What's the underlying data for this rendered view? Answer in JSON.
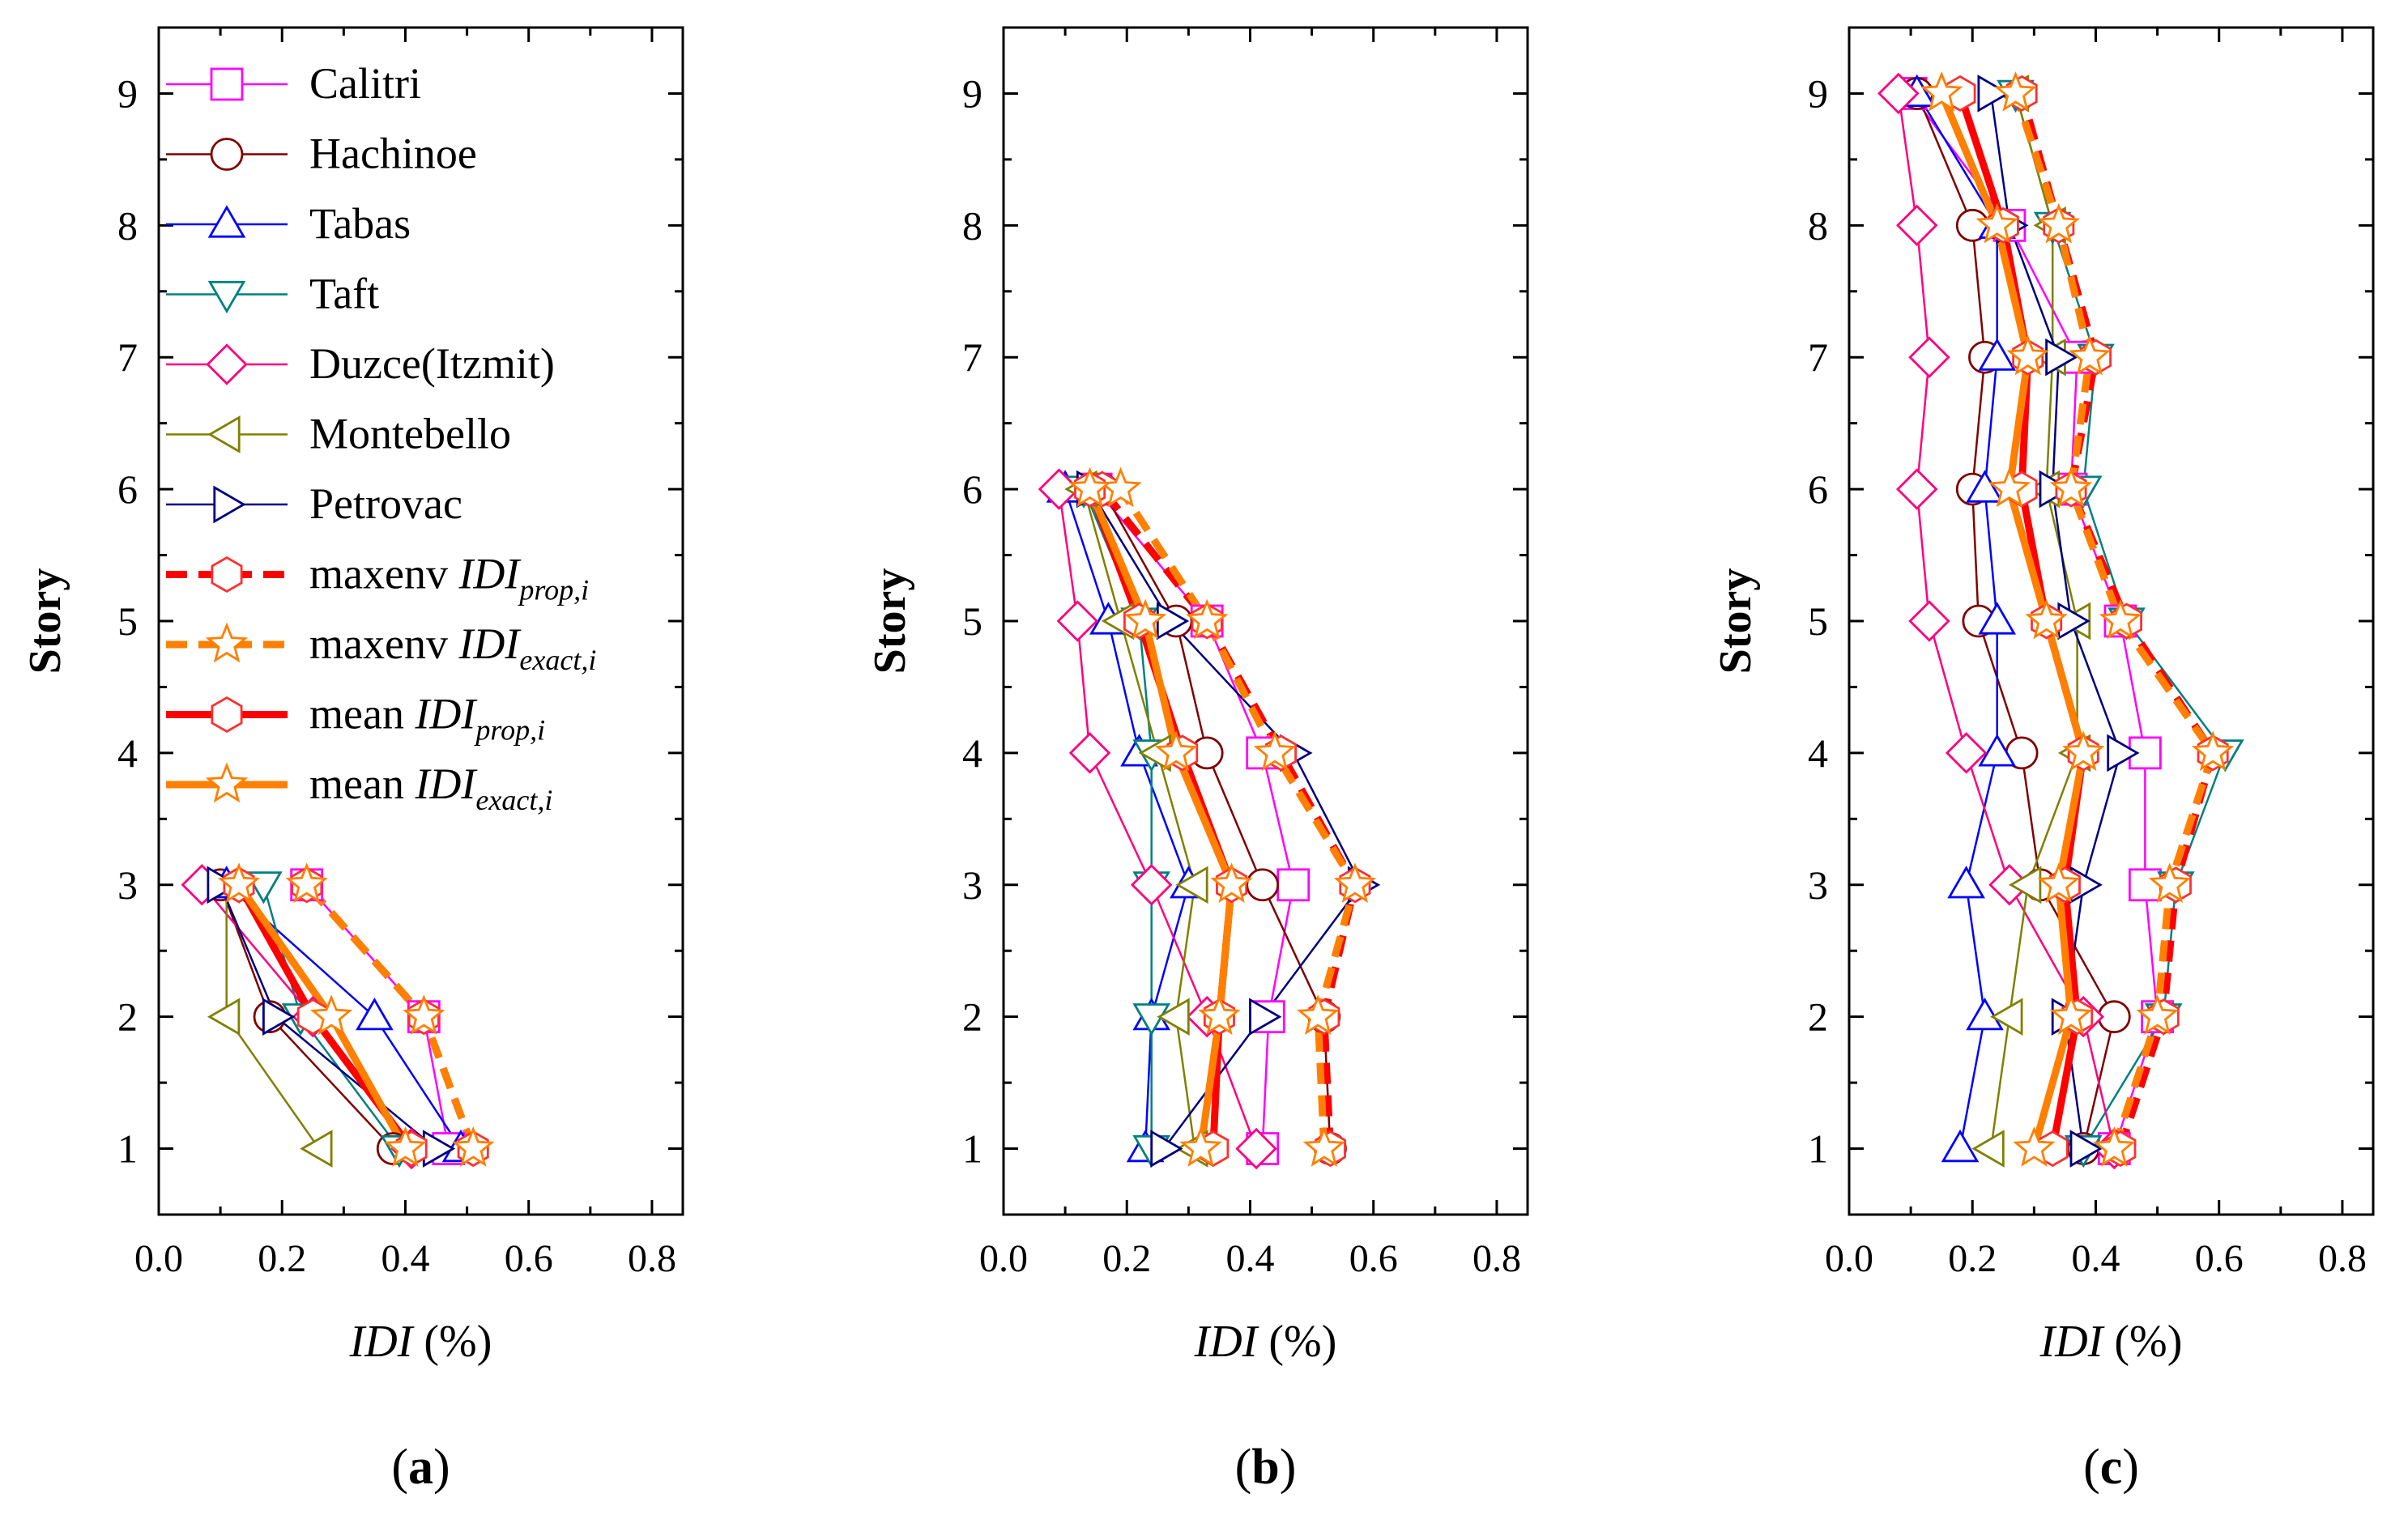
{
  "styles": {
    "Calitri": {
      "color": "#ff00ff",
      "marker": "square",
      "dash": "",
      "width": 2.5
    },
    "Hachinoe": {
      "color": "#800000",
      "marker": "circle",
      "dash": "",
      "width": 2.5
    },
    "Tabas": {
      "color": "#0000ff",
      "marker": "triangle-up",
      "dash": "",
      "width": 2.5
    },
    "Taft": {
      "color": "#008080",
      "marker": "triangle-down",
      "dash": "",
      "width": 2.5
    },
    "Duzce(Itzmit)": {
      "color": "#ff0080",
      "marker": "diamond",
      "dash": "",
      "width": 2.5
    },
    "Montebello": {
      "color": "#808000",
      "marker": "triangle-left",
      "dash": "",
      "width": 2.5
    },
    "Petrovac": {
      "color": "#000080",
      "marker": "triangle-right",
      "dash": "",
      "width": 2.5
    },
    "maxenv_prop": {
      "color": "#ff0000",
      "marker": "hexagon",
      "dash": "26,14",
      "width": 9,
      "markerStroke": "#ff3030"
    },
    "maxenv_exact": {
      "color": "#ff8000",
      "marker": "star",
      "dash": "26,14",
      "width": 9
    },
    "mean_prop": {
      "color": "#ff0000",
      "marker": "hexagon",
      "dash": "",
      "width": 9,
      "markerStroke": "#ff3030"
    },
    "mean_exact": {
      "color": "#ff8000",
      "marker": "star",
      "dash": "",
      "width": 9
    }
  },
  "legend": {
    "items": [
      {
        "key": "Calitri",
        "label": "Calitri"
      },
      {
        "key": "Hachinoe",
        "label": "Hachinoe"
      },
      {
        "key": "Tabas",
        "label": "Tabas"
      },
      {
        "key": "Taft",
        "label": "Taft"
      },
      {
        "key": "Duzce(Itzmit)",
        "label": "Duzce(Itzmit)"
      },
      {
        "key": "Montebello",
        "label": "Montebello"
      },
      {
        "key": "Petrovac",
        "label": "Petrovac"
      },
      {
        "key": "maxenv_prop",
        "prefix": "maxenv ",
        "italic": "IDI",
        "sub": "prop,i"
      },
      {
        "key": "maxenv_exact",
        "prefix": "maxenv ",
        "italic": "IDI",
        "sub": "exact,i"
      },
      {
        "key": "mean_prop",
        "prefix": "mean ",
        "italic": "IDI",
        "sub": "prop,i"
      },
      {
        "key": "mean_exact",
        "prefix": "mean ",
        "italic": "IDI",
        "sub": "exact,i"
      }
    ]
  },
  "chart_data": [
    {
      "type": "line",
      "panel_label": "(a)",
      "panel_letter": "a",
      "xlabel_italic": "IDI",
      "xlabel_rest": " (%)",
      "ylabel": "Story",
      "xlim": [
        0.0,
        0.85
      ],
      "ylim": [
        0.5,
        9.5
      ],
      "xticks": [
        "0.0",
        "0.2",
        "0.4",
        "0.6",
        "0.8"
      ],
      "yticks": [
        "1",
        "2",
        "3",
        "4",
        "5",
        "6",
        "7",
        "8",
        "9"
      ],
      "series": [
        {
          "name": "Calitri",
          "x": [
            0.47,
            0.43,
            0.24
          ],
          "y": [
            1,
            2,
            3
          ]
        },
        {
          "name": "Hachinoe",
          "x": [
            0.38,
            0.18,
            0.1
          ],
          "y": [
            1,
            2,
            3
          ]
        },
        {
          "name": "Tabas",
          "x": [
            0.49,
            0.35,
            0.11
          ],
          "y": [
            1,
            2,
            3
          ]
        },
        {
          "name": "Taft",
          "x": [
            0.39,
            0.23,
            0.17
          ],
          "y": [
            1,
            2,
            3
          ]
        },
        {
          "name": "Duzce(Itzmit)",
          "x": [
            0.41,
            0.25,
            0.07
          ],
          "y": [
            1,
            2,
            3
          ]
        },
        {
          "name": "Montebello",
          "x": [
            0.26,
            0.11,
            0.11
          ],
          "y": [
            1,
            2,
            3
          ]
        },
        {
          "name": "Petrovac",
          "x": [
            0.45,
            0.19,
            0.1
          ],
          "y": [
            1,
            2,
            3
          ]
        },
        {
          "name": "maxenv_prop",
          "x": [
            0.51,
            0.43,
            0.24
          ],
          "y": [
            1,
            2,
            3
          ]
        },
        {
          "name": "maxenv_exact",
          "x": [
            0.51,
            0.43,
            0.24
          ],
          "y": [
            1,
            2,
            3
          ]
        },
        {
          "name": "mean_prop",
          "x": [
            0.41,
            0.25,
            0.13
          ],
          "y": [
            1,
            2,
            3
          ]
        },
        {
          "name": "mean_exact",
          "x": [
            0.4,
            0.28,
            0.13
          ],
          "y": [
            1,
            2,
            3
          ]
        }
      ]
    },
    {
      "type": "line",
      "panel_label": "(b)",
      "panel_letter": "b",
      "xlabel_italic": "IDI",
      "xlabel_rest": " (%)",
      "ylabel": "Story",
      "xlim": [
        0.0,
        0.85
      ],
      "ylim": [
        0.5,
        9.5
      ],
      "xticks": [
        "0.0",
        "0.2",
        "0.4",
        "0.6",
        "0.8"
      ],
      "yticks": [
        "1",
        "2",
        "3",
        "4",
        "5",
        "6",
        "7",
        "8",
        "9"
      ],
      "series": [
        {
          "name": "Calitri",
          "x": [
            0.42,
            0.43,
            0.47,
            0.42,
            0.33,
            0.15
          ],
          "y": [
            1,
            2,
            3,
            4,
            5,
            6
          ]
        },
        {
          "name": "Hachinoe",
          "x": [
            0.53,
            0.52,
            0.42,
            0.33,
            0.28,
            0.16
          ],
          "y": [
            1,
            2,
            3,
            4,
            5,
            6
          ]
        },
        {
          "name": "Tabas",
          "x": [
            0.23,
            0.24,
            0.3,
            0.22,
            0.17,
            0.1
          ],
          "y": [
            1,
            2,
            3,
            4,
            5,
            6
          ]
        },
        {
          "name": "Taft",
          "x": [
            0.24,
            0.24,
            0.24,
            0.24,
            0.22,
            0.13
          ],
          "y": [
            1,
            2,
            3,
            4,
            5,
            6
          ]
        },
        {
          "name": "Duzce(Itzmit)",
          "x": [
            0.41,
            0.33,
            0.24,
            0.14,
            0.12,
            0.09
          ],
          "y": [
            1,
            2,
            3,
            4,
            5,
            6
          ]
        },
        {
          "name": "Montebello",
          "x": [
            0.31,
            0.28,
            0.31,
            0.25,
            0.19,
            0.13
          ],
          "y": [
            1,
            2,
            3,
            4,
            5,
            6
          ]
        },
        {
          "name": "Petrovac",
          "x": [
            0.26,
            0.42,
            0.58,
            0.47,
            0.27,
            0.14
          ],
          "y": [
            1,
            2,
            3,
            4,
            5,
            6
          ]
        },
        {
          "name": "maxenv_prop",
          "x": [
            0.53,
            0.52,
            0.57,
            0.45,
            0.33,
            0.16
          ],
          "y": [
            1,
            2,
            3,
            4,
            5,
            6
          ]
        },
        {
          "name": "maxenv_exact",
          "x": [
            0.52,
            0.51,
            0.57,
            0.44,
            0.33,
            0.19
          ],
          "y": [
            1,
            2,
            3,
            4,
            5,
            6
          ]
        },
        {
          "name": "mean_prop",
          "x": [
            0.34,
            0.35,
            0.37,
            0.29,
            0.22,
            0.14
          ],
          "y": [
            1,
            2,
            3,
            4,
            5,
            6
          ]
        },
        {
          "name": "mean_exact",
          "x": [
            0.32,
            0.35,
            0.37,
            0.28,
            0.23,
            0.14
          ],
          "y": [
            1,
            2,
            3,
            4,
            5,
            6
          ]
        }
      ]
    },
    {
      "type": "line",
      "panel_label": "(c)",
      "panel_letter": "c",
      "xlabel_italic": "IDI",
      "xlabel_rest": " (%)",
      "ylabel": "Story",
      "xlim": [
        0.0,
        0.85
      ],
      "ylim": [
        0.5,
        9.5
      ],
      "xticks": [
        "0.0",
        "0.2",
        "0.4",
        "0.6",
        "0.8"
      ],
      "yticks": [
        "1",
        "2",
        "3",
        "4",
        "5",
        "6",
        "7",
        "8",
        "9"
      ],
      "series": [
        {
          "name": "Calitri",
          "x": [
            0.43,
            0.5,
            0.48,
            0.48,
            0.44,
            0.36,
            0.37,
            0.26,
            0.1
          ],
          "y": [
            1,
            2,
            3,
            4,
            5,
            6,
            7,
            8,
            9
          ]
        },
        {
          "name": "Hachinoe",
          "x": [
            0.38,
            0.43,
            0.31,
            0.28,
            0.21,
            0.2,
            0.22,
            0.2,
            0.11
          ],
          "y": [
            1,
            2,
            3,
            4,
            5,
            6,
            7,
            8,
            9
          ]
        },
        {
          "name": "Tabas",
          "x": [
            0.18,
            0.22,
            0.19,
            0.24,
            0.24,
            0.22,
            0.24,
            0.24,
            0.11
          ],
          "y": [
            1,
            2,
            3,
            4,
            5,
            6,
            7,
            8,
            9
          ]
        },
        {
          "name": "Taft",
          "x": [
            0.38,
            0.51,
            0.53,
            0.61,
            0.45,
            0.38,
            0.4,
            0.33,
            0.27
          ],
          "y": [
            1,
            2,
            3,
            4,
            5,
            6,
            7,
            8,
            9
          ]
        },
        {
          "name": "Duzce(Itzmit)",
          "x": [
            0.43,
            0.38,
            0.26,
            0.19,
            0.13,
            0.11,
            0.13,
            0.11,
            0.08
          ],
          "y": [
            1,
            2,
            3,
            4,
            5,
            6,
            7,
            8,
            9
          ]
        },
        {
          "name": "Montebello",
          "x": [
            0.23,
            0.26,
            0.29,
            0.37,
            0.37,
            0.32,
            0.33,
            0.33,
            0.27
          ],
          "y": [
            1,
            2,
            3,
            4,
            5,
            6,
            7,
            8,
            9
          ]
        },
        {
          "name": "Petrovac",
          "x": [
            0.38,
            0.35,
            0.38,
            0.44,
            0.36,
            0.33,
            0.34,
            0.26,
            0.23
          ],
          "y": [
            1,
            2,
            3,
            4,
            5,
            6,
            7,
            8,
            9
          ]
        },
        {
          "name": "maxenv_prop",
          "x": [
            0.44,
            0.51,
            0.53,
            0.59,
            0.45,
            0.36,
            0.4,
            0.34,
            0.28
          ],
          "y": [
            1,
            2,
            3,
            4,
            5,
            6,
            7,
            8,
            9
          ]
        },
        {
          "name": "maxenv_exact",
          "x": [
            0.43,
            0.5,
            0.52,
            0.59,
            0.44,
            0.36,
            0.39,
            0.34,
            0.27
          ],
          "y": [
            1,
            2,
            3,
            4,
            5,
            6,
            7,
            8,
            9
          ]
        },
        {
          "name": "mean_prop",
          "x": [
            0.33,
            0.37,
            0.35,
            0.38,
            0.32,
            0.28,
            0.29,
            0.25,
            0.18
          ],
          "y": [
            1,
            2,
            3,
            4,
            5,
            6,
            7,
            8,
            9
          ]
        },
        {
          "name": "mean_exact",
          "x": [
            0.3,
            0.36,
            0.34,
            0.38,
            0.32,
            0.26,
            0.29,
            0.24,
            0.15
          ],
          "y": [
            1,
            2,
            3,
            4,
            5,
            6,
            7,
            8,
            9
          ]
        }
      ]
    }
  ]
}
